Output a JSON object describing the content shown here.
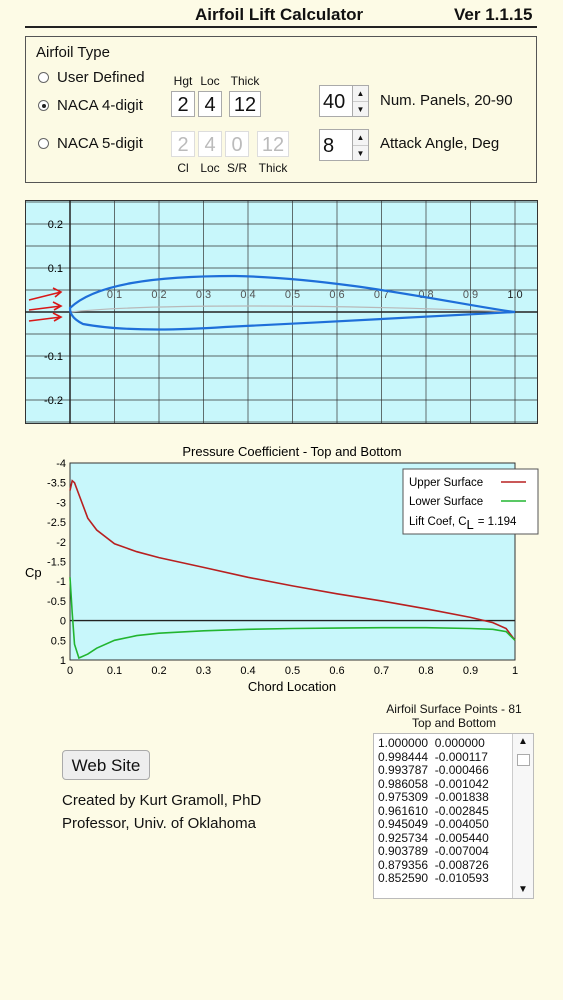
{
  "header": {
    "title": "Airfoil Lift Calculator",
    "version": "Ver 1.1.15"
  },
  "airfoil_type": {
    "title": "Airfoil Type",
    "options": [
      {
        "label": "User Defined",
        "selected": false
      },
      {
        "label": "NACA 4-digit",
        "selected": true
      },
      {
        "label": "NACA 5-digit",
        "selected": false
      }
    ],
    "naca4": {
      "labels": [
        "Hgt",
        "Loc",
        "Thick"
      ],
      "values": [
        "2",
        "4",
        "12"
      ]
    },
    "naca5": {
      "labels": [
        "Cl",
        "Loc",
        "S/R",
        "Thick"
      ],
      "values": [
        "2",
        "4",
        "0",
        "12"
      ]
    },
    "panels": {
      "value": "40",
      "label": "Num. Panels, 20-90"
    },
    "attack": {
      "value": "8",
      "label": "Attack Angle, Deg"
    }
  },
  "airfoil_plot": {
    "y_ticks": [
      "0.2",
      "0.1",
      "-0.1",
      "-0.2"
    ],
    "x_ticks": [
      "0.1",
      "0.2",
      "0.3",
      "0.4",
      "0.5",
      "0.6",
      "0.7",
      "0.8",
      "0.9",
      "1.0"
    ],
    "colors": {
      "bg": "#c8f7fb",
      "surface": "#1e6fd9",
      "camber": "#b8b8b8",
      "arrows": "#d81818"
    }
  },
  "chart_data": {
    "type": "line",
    "title": "Pressure Coefficient - Top and Bottom",
    "xlabel": "Chord Location",
    "ylabel": "Cp",
    "xlim": [
      0,
      1
    ],
    "ylim": [
      -4,
      1
    ],
    "y_inverted": true,
    "x_ticks": [
      "0",
      "0.1",
      "0.2",
      "0.3",
      "0.4",
      "0.5",
      "0.6",
      "0.7",
      "0.8",
      "0.9",
      "1"
    ],
    "y_ticks": [
      "-4",
      "-3.5",
      "-3",
      "-2.5",
      "-2",
      "-1.5",
      "-1",
      "-0.5",
      "0",
      "0.5",
      "1"
    ],
    "legend": {
      "placement": "top-right",
      "lift_label": "Lift Coef, C",
      "lift_sub": "L",
      "lift_value": "= 1.194"
    },
    "series": [
      {
        "name": "Upper Surface",
        "color": "#b82020",
        "x": [
          0.0,
          0.005,
          0.01,
          0.02,
          0.04,
          0.06,
          0.1,
          0.15,
          0.2,
          0.3,
          0.4,
          0.5,
          0.6,
          0.7,
          0.8,
          0.9,
          0.95,
          0.98,
          1.0
        ],
        "y": [
          -3.3,
          -3.55,
          -3.5,
          -3.2,
          -2.6,
          -2.3,
          -1.95,
          -1.75,
          -1.6,
          -1.35,
          -1.1,
          -0.88,
          -0.68,
          -0.5,
          -0.3,
          -0.08,
          0.05,
          0.2,
          0.5
        ]
      },
      {
        "name": "Lower Surface",
        "color": "#22b530",
        "x": [
          0.0,
          0.005,
          0.01,
          0.02,
          0.04,
          0.06,
          0.1,
          0.15,
          0.2,
          0.3,
          0.4,
          0.5,
          0.6,
          0.7,
          0.8,
          0.9,
          0.95,
          0.98,
          1.0
        ],
        "y": [
          -1.1,
          -0.2,
          0.6,
          0.95,
          0.85,
          0.7,
          0.5,
          0.38,
          0.32,
          0.26,
          0.22,
          0.2,
          0.19,
          0.18,
          0.18,
          0.2,
          0.22,
          0.28,
          0.5
        ]
      }
    ]
  },
  "footer": {
    "web_button": "Web Site",
    "credit_1": "Created by Kurt Gramoll, PhD",
    "credit_2": "Professor, Univ. of Oklahoma"
  },
  "points_list": {
    "title_1": "Airfoil Surface Points - 81",
    "title_2": "Top and Bottom",
    "rows": [
      "1.000000  0.000000",
      "0.998444  -0.000117",
      "0.993787  -0.000466",
      "0.986058  -0.001042",
      "0.975309  -0.001838",
      "0.961610  -0.002845",
      "0.945049  -0.004050",
      "0.925734  -0.005440",
      "0.903789  -0.007004",
      "0.879356  -0.008726",
      "0.852590  -0.010593"
    ]
  }
}
